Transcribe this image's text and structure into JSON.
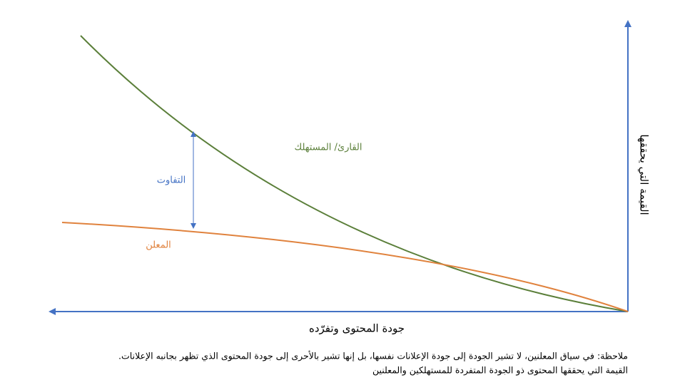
{
  "diagram": {
    "y_axis_label": "القيمة التي يحققها",
    "x_axis_label": "جودة المحتوى وتفرّده",
    "curves": [
      {
        "label": "القارئ/ المستهلك"
      },
      {
        "label": "المعلن"
      }
    ],
    "gap_label": "التفاوت",
    "note": [
      "ملاحظة: في سياق المعلنين، لا تشير الجودة إلى جودة الإعلانات نفسها، بل إنها تشير بالأحرى إلى جودة المحتوى الذي تظهر بجانبه الإعلانات.",
      "القيمة التي يحققها المحتوى ذو الجودة المتفردة للمستهلكين والمعلنين"
    ]
  }
}
